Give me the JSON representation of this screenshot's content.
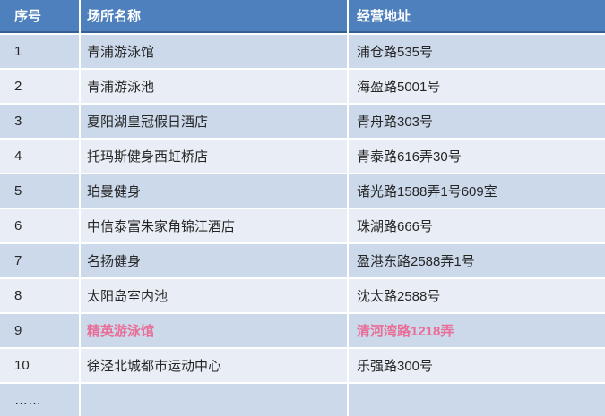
{
  "table": {
    "columns": [
      {
        "key": "serial",
        "label": "序号"
      },
      {
        "key": "name",
        "label": "场所名称"
      },
      {
        "key": "address",
        "label": "经营地址"
      }
    ],
    "rows": [
      {
        "serial": "1",
        "name": "青浦游泳馆",
        "address": "浦仓路535号",
        "highlight": false
      },
      {
        "serial": "2",
        "name": "青浦游泳池",
        "address": "海盈路5001号",
        "highlight": false
      },
      {
        "serial": "3",
        "name": "夏阳湖皇冠假日酒店",
        "address": "青舟路303号",
        "highlight": false
      },
      {
        "serial": "4",
        "name": "托玛斯健身西虹桥店",
        "address": "青泰路616弄30号",
        "highlight": false
      },
      {
        "serial": "5",
        "name": "珀曼健身",
        "address": "诸光路1588弄1号609室",
        "highlight": false
      },
      {
        "serial": "6",
        "name": "中信泰富朱家角锦江酒店",
        "address": "珠湖路666号",
        "highlight": false
      },
      {
        "serial": "7",
        "name": "名扬健身",
        "address": "盈港东路2588弄1号",
        "highlight": false
      },
      {
        "serial": "8",
        "name": "太阳岛室内池",
        "address": "沈太路2588号",
        "highlight": false
      },
      {
        "serial": "9",
        "name": "精英游泳馆",
        "address": "清河湾路1218弄",
        "highlight": true
      },
      {
        "serial": "10",
        "name": "徐泾北城都市运动中心",
        "address": "乐强路300号",
        "highlight": false
      },
      {
        "serial": "……",
        "name": "",
        "address": "",
        "highlight": false
      }
    ]
  },
  "colors": {
    "header_bg": "#4d80bc",
    "header_line": "#36618e",
    "header_text": "#ffffff",
    "row_odd": "#ccd9ea",
    "row_even": "#e9eef6",
    "body_text": "#262626",
    "highlight": "#e96d96",
    "separator": "#ffffff"
  }
}
